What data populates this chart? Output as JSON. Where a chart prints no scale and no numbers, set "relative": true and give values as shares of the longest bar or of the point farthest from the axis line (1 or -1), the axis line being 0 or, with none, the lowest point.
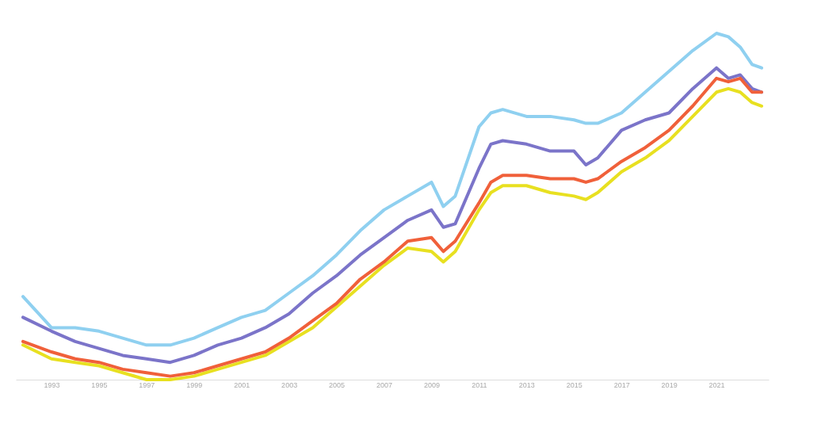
{
  "chart_data": {
    "type": "line",
    "relative": true,
    "line_style": "solid",
    "x": [
      1991.8,
      1993,
      1994,
      1995,
      1996,
      1997,
      1998,
      1999,
      2000,
      2001,
      2002,
      2003,
      2004,
      2005,
      2006,
      2007,
      2008,
      2009,
      2009.5,
      2010,
      2011,
      2011.5,
      2012,
      2013,
      2014,
      2015,
      2015.5,
      2016,
      2017,
      2018,
      2019,
      2020,
      2021,
      2021.5,
      2022,
      2022.5,
      2022.9
    ],
    "xlim": [
      1991.5,
      2023.2
    ],
    "xticks": [
      1993,
      1995,
      1997,
      1999,
      2001,
      2003,
      2005,
      2007,
      2009,
      2011,
      2013,
      2015,
      2017,
      2019,
      2021
    ],
    "series": [
      {
        "color": "#8fd0f0",
        "values": [
          0.24,
          0.15,
          0.15,
          0.14,
          0.12,
          0.1,
          0.1,
          0.12,
          0.15,
          0.18,
          0.2,
          0.25,
          0.3,
          0.36,
          0.43,
          0.49,
          0.53,
          0.57,
          0.5,
          0.53,
          0.73,
          0.77,
          0.78,
          0.76,
          0.76,
          0.75,
          0.74,
          0.74,
          0.77,
          0.83,
          0.89,
          0.95,
          1.0,
          0.99,
          0.96,
          0.91,
          0.9
        ]
      },
      {
        "color": "#7b74c9",
        "values": [
          0.18,
          0.14,
          0.11,
          0.09,
          0.07,
          0.06,
          0.05,
          0.07,
          0.1,
          0.12,
          0.15,
          0.19,
          0.25,
          0.3,
          0.36,
          0.41,
          0.46,
          0.49,
          0.44,
          0.45,
          0.61,
          0.68,
          0.69,
          0.68,
          0.66,
          0.66,
          0.62,
          0.64,
          0.72,
          0.75,
          0.77,
          0.84,
          0.9,
          0.87,
          0.88,
          0.84,
          0.83
        ]
      },
      {
        "color": "#e8e020",
        "values": [
          0.1,
          0.06,
          0.05,
          0.04,
          0.02,
          0.0,
          0.0,
          0.01,
          0.03,
          0.05,
          0.07,
          0.11,
          0.15,
          0.21,
          0.27,
          0.33,
          0.38,
          0.37,
          0.34,
          0.37,
          0.49,
          0.54,
          0.56,
          0.56,
          0.54,
          0.53,
          0.52,
          0.54,
          0.6,
          0.64,
          0.69,
          0.76,
          0.83,
          0.84,
          0.83,
          0.8,
          0.79
        ]
      },
      {
        "color": "#f0603a",
        "values": [
          0.11,
          0.08,
          0.06,
          0.05,
          0.03,
          0.02,
          0.01,
          0.02,
          0.04,
          0.06,
          0.08,
          0.12,
          0.17,
          0.22,
          0.29,
          0.34,
          0.4,
          0.41,
          0.37,
          0.4,
          0.51,
          0.57,
          0.59,
          0.59,
          0.58,
          0.58,
          0.57,
          0.58,
          0.63,
          0.67,
          0.72,
          0.79,
          0.87,
          0.86,
          0.87,
          0.83,
          0.83
        ]
      }
    ]
  }
}
